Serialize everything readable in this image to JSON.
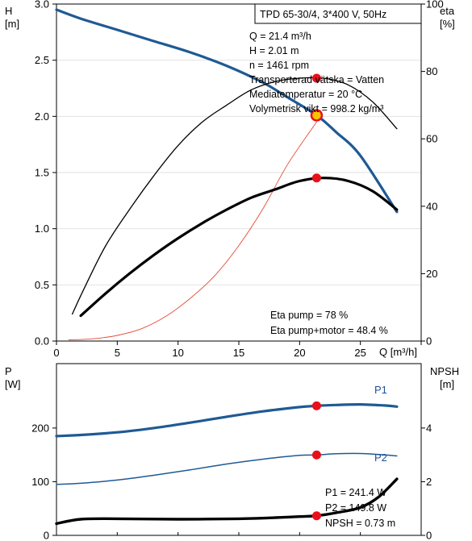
{
  "colors": {
    "head_curve": "#1f5a94",
    "power_curve": "#1f5a94",
    "eta_curves": "#000000",
    "system_curve": "#e34a36",
    "grid": "#e2e2e2",
    "marker": "#e8101a",
    "marker_head_outer": "#f5c400"
  },
  "top": {
    "title_box": "TPD 65-30/4, 3*400 V, 50Hz",
    "info_lines": [
      "Q = 21.4 m³/h",
      "H = 2.01 m",
      "n = 1461 rpm",
      "Transporterad vätska = Vatten",
      "Mediatemperatur = 20 °C",
      "Volymetrisk vikt = 998.2 kg/m³"
    ],
    "eta_lines": [
      "Eta pump = 78 %",
      "Eta pump+motor = 48.4 %"
    ],
    "left_axis": {
      "name": "H",
      "unit": "[m]"
    },
    "right_axis": {
      "name": "eta",
      "unit": "[%]"
    },
    "x_axis": {
      "name": "Q [m³/h]"
    }
  },
  "bottom": {
    "left_axis": {
      "name": "P",
      "unit": "[W]"
    },
    "right_axis": {
      "name": "NPSH",
      "unit": "[m]"
    },
    "p1_label": "P1",
    "p2_label": "P2",
    "readouts": [
      "P1 = 241.4 W",
      "P2 = 149.8 W",
      "NPSH = 0.73 m"
    ]
  },
  "chart_data": [
    {
      "type": "line",
      "title": "",
      "xlabel": "Q [m³/h]",
      "ylabel": "H [m]",
      "y2label": "eta [%]",
      "xlim": [
        0,
        30
      ],
      "ylim": [
        0,
        3.0
      ],
      "y2lim": [
        0,
        100
      ],
      "x_ticks": [
        0,
        5,
        10,
        15,
        20,
        25
      ],
      "y_ticks": [
        0.0,
        0.5,
        1.0,
        1.5,
        2.0,
        2.5,
        3.0
      ],
      "y2_ticks": [
        0,
        20,
        40,
        60,
        80,
        100
      ],
      "grid": true,
      "series": [
        {
          "axis": "left",
          "style": "head",
          "role": "head",
          "x": [
            0,
            2,
            5,
            8,
            11,
            14,
            17,
            19,
            21.4,
            23,
            25,
            28
          ],
          "values": [
            2.95,
            2.87,
            2.77,
            2.67,
            2.57,
            2.45,
            2.3,
            2.17,
            2.01,
            1.86,
            1.65,
            1.15
          ]
        },
        {
          "axis": "left",
          "style": "system",
          "role": "system",
          "x": [
            1,
            3,
            5,
            7,
            9,
            11,
            13,
            15,
            17,
            19,
            21.4
          ],
          "values": [
            0.01,
            0.02,
            0.05,
            0.11,
            0.22,
            0.38,
            0.58,
            0.85,
            1.18,
            1.57,
            1.95
          ]
        },
        {
          "axis": "right",
          "style": "eta_thin",
          "role": "eta_pump",
          "x": [
            1.3,
            2.2,
            4,
            6,
            8,
            10,
            12,
            14,
            16,
            18,
            20,
            22,
            24,
            26,
            28
          ],
          "values": [
            8,
            15,
            28,
            39,
            49,
            58,
            65,
            70,
            74.5,
            77,
            78,
            78,
            76,
            71,
            63
          ]
        },
        {
          "axis": "right",
          "style": "eta_thick",
          "role": "eta_total",
          "x": [
            2,
            4,
            6,
            8,
            10,
            12,
            14,
            16,
            18,
            20,
            22,
            24,
            26,
            28
          ],
          "values": [
            7.5,
            14,
            20,
            25.5,
            30.5,
            35,
            39,
            42.5,
            45,
            47.5,
            48.4,
            47.5,
            44.5,
            39
          ]
        }
      ],
      "markers": [
        {
          "axis": "left",
          "x": 21.4,
          "y": 2.01,
          "style": "head"
        },
        {
          "axis": "right",
          "x": 21.4,
          "y": 78,
          "style": "plain"
        },
        {
          "axis": "right",
          "x": 21.4,
          "y": 48.4,
          "style": "plain"
        }
      ]
    },
    {
      "type": "line",
      "title": "",
      "xlabel": "",
      "ylabel": "P [W]",
      "y2label": "NPSH [m]",
      "xlim": [
        0,
        30
      ],
      "ylim": [
        0,
        320
      ],
      "y2lim": [
        0,
        6.4
      ],
      "y_ticks": [
        0,
        100,
        200
      ],
      "y2_ticks": [
        0,
        2,
        4
      ],
      "grid": false,
      "series": [
        {
          "name": "P1",
          "axis": "left",
          "style": "power_thick",
          "role": "p1",
          "x": [
            0,
            2,
            5,
            8,
            11,
            14,
            17,
            20,
            21.4,
            23,
            25,
            27,
            28
          ],
          "values": [
            185,
            187,
            192,
            200,
            210,
            221,
            231,
            239,
            241.4,
            243,
            244,
            242,
            240
          ]
        },
        {
          "name": "P2",
          "axis": "left",
          "style": "power_thin",
          "role": "p2",
          "x": [
            0,
            2,
            5,
            8,
            11,
            14,
            17,
            20,
            21.4,
            23,
            25,
            27,
            28
          ],
          "values": [
            95,
            97,
            103,
            112,
            122,
            133,
            142,
            149,
            149.8,
            152,
            152.5,
            150,
            148
          ]
        },
        {
          "axis": "right",
          "style": "npsh",
          "role": "npsh",
          "x": [
            0,
            2,
            5,
            10,
            15,
            18,
            20,
            21.4,
            23,
            25,
            26.5,
            28
          ],
          "values": [
            0.44,
            0.6,
            0.62,
            0.6,
            0.62,
            0.66,
            0.7,
            0.73,
            0.84,
            1.04,
            1.43,
            2.1
          ]
        }
      ],
      "markers": [
        {
          "axis": "left",
          "x": 21.4,
          "y": 241.4,
          "style": "plain"
        },
        {
          "axis": "left",
          "x": 21.4,
          "y": 149.8,
          "style": "plain"
        },
        {
          "axis": "right",
          "x": 21.4,
          "y": 0.73,
          "style": "plain"
        }
      ]
    }
  ]
}
